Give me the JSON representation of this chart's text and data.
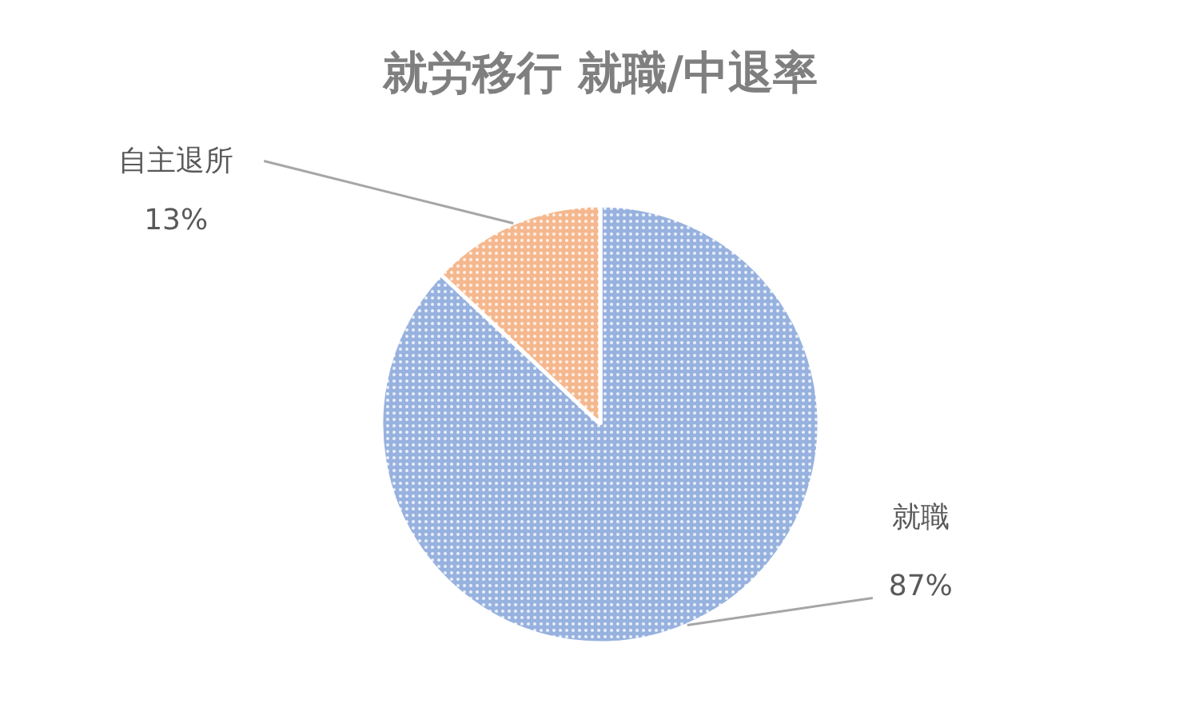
{
  "chart_data": {
    "type": "pie",
    "title": "就労移行 就職/中退率",
    "categories": [
      "就職",
      "自主退所"
    ],
    "values": [
      87,
      13
    ],
    "colors": [
      "#4472c4",
      "#ed7d31"
    ],
    "value_labels": [
      "87%",
      "13%"
    ]
  }
}
